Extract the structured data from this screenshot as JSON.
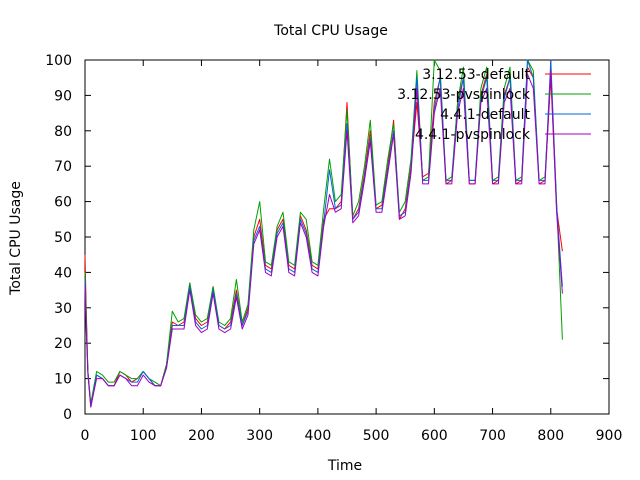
{
  "chart_data": {
    "type": "line",
    "title": "Total CPU Usage",
    "xlabel": "Time",
    "ylabel": "Total CPU Usage",
    "xlim": [
      0,
      900
    ],
    "ylim": [
      0,
      100
    ],
    "xticks": [
      0,
      100,
      200,
      300,
      400,
      500,
      600,
      700,
      800,
      900
    ],
    "yticks": [
      0,
      10,
      20,
      30,
      40,
      50,
      60,
      70,
      80,
      90,
      100
    ],
    "grid": false,
    "legend_position": "top-right",
    "series": [
      {
        "name": "3.12.53-default",
        "color": "#ff0000",
        "x": [
          0,
          2,
          5,
          10,
          20,
          30,
          40,
          50,
          60,
          70,
          80,
          90,
          100,
          110,
          120,
          130,
          140,
          150,
          160,
          170,
          180,
          190,
          200,
          210,
          220,
          230,
          240,
          250,
          260,
          270,
          280,
          290,
          300,
          310,
          320,
          330,
          340,
          350,
          360,
          370,
          380,
          390,
          400,
          410,
          420,
          430,
          440,
          450,
          460,
          470,
          480,
          490,
          500,
          510,
          520,
          530,
          540,
          550,
          560,
          570,
          580,
          590,
          600,
          610,
          620,
          630,
          640,
          650,
          660,
          670,
          680,
          690,
          700,
          710,
          720,
          730,
          740,
          750,
          760,
          770,
          780,
          790,
          800,
          810,
          820
        ],
        "y": [
          45,
          30,
          12,
          2,
          11,
          10,
          8,
          8,
          12,
          11,
          9,
          10,
          12,
          10,
          8,
          8,
          14,
          26,
          25,
          26,
          37,
          27,
          25,
          26,
          36,
          25,
          24,
          26,
          35,
          25,
          30,
          50,
          55,
          42,
          41,
          52,
          55,
          42,
          41,
          56,
          52,
          42,
          41,
          55,
          58,
          58,
          60,
          88,
          55,
          58,
          68,
          80,
          58,
          59,
          70,
          83,
          55,
          58,
          70,
          88,
          67,
          68,
          88,
          95,
          65,
          66,
          88,
          95,
          65,
          65,
          90,
          96,
          65,
          66,
          90,
          95,
          65,
          66,
          98,
          95,
          65,
          66,
          95,
          58,
          46
        ]
      },
      {
        "name": "3.12.53-pvspinlock",
        "color": "#00a000",
        "x": [
          0,
          2,
          5,
          10,
          20,
          30,
          40,
          50,
          60,
          70,
          80,
          90,
          100,
          110,
          120,
          130,
          140,
          150,
          160,
          170,
          180,
          190,
          200,
          210,
          220,
          230,
          240,
          250,
          260,
          270,
          280,
          290,
          300,
          310,
          320,
          330,
          340,
          350,
          360,
          370,
          380,
          390,
          400,
          410,
          420,
          430,
          440,
          450,
          460,
          470,
          480,
          490,
          500,
          510,
          520,
          530,
          540,
          550,
          560,
          570,
          580,
          590,
          600,
          610,
          620,
          630,
          640,
          650,
          660,
          670,
          680,
          690,
          700,
          710,
          720,
          730,
          740,
          750,
          760,
          770,
          780,
          790,
          800,
          810,
          820
        ],
        "y": [
          40,
          28,
          12,
          3,
          12,
          11,
          9,
          9,
          12,
          11,
          10,
          10,
          12,
          10,
          9,
          8,
          14,
          29,
          26,
          27,
          37,
          28,
          26,
          27,
          36,
          26,
          25,
          27,
          38,
          26,
          31,
          52,
          60,
          43,
          42,
          53,
          57,
          43,
          42,
          57,
          55,
          43,
          42,
          58,
          72,
          60,
          62,
          86,
          56,
          60,
          70,
          83,
          59,
          60,
          72,
          82,
          57,
          60,
          72,
          97,
          66,
          67,
          100,
          97,
          66,
          67,
          88,
          98,
          66,
          66,
          92,
          98,
          66,
          67,
          92,
          98,
          66,
          67,
          100,
          97,
          66,
          67,
          97,
          60,
          21
        ]
      },
      {
        "name": "4.4.1-default",
        "color": "#0066dd",
        "x": [
          0,
          2,
          5,
          10,
          20,
          30,
          40,
          50,
          60,
          70,
          80,
          90,
          100,
          110,
          120,
          130,
          140,
          150,
          160,
          170,
          180,
          190,
          200,
          210,
          220,
          230,
          240,
          250,
          260,
          270,
          280,
          290,
          300,
          310,
          320,
          330,
          340,
          350,
          360,
          370,
          380,
          390,
          400,
          410,
          420,
          430,
          440,
          450,
          460,
          470,
          480,
          490,
          500,
          510,
          520,
          530,
          540,
          550,
          560,
          570,
          580,
          590,
          600,
          610,
          620,
          630,
          640,
          650,
          660,
          670,
          680,
          690,
          700,
          710,
          720,
          730,
          740,
          750,
          760,
          770,
          780,
          790,
          800,
          810,
          820
        ],
        "y": [
          38,
          25,
          12,
          2,
          11,
          10,
          8,
          8,
          11,
          10,
          9,
          9,
          12,
          10,
          8,
          8,
          13,
          25,
          25,
          25,
          36,
          26,
          24,
          25,
          35,
          25,
          24,
          25,
          34,
          25,
          29,
          49,
          53,
          41,
          40,
          51,
          54,
          41,
          40,
          55,
          51,
          41,
          40,
          54,
          69,
          58,
          59,
          82,
          55,
          57,
          67,
          78,
          58,
          58,
          69,
          80,
          56,
          57,
          69,
          95,
          66,
          66,
          86,
          95,
          66,
          66,
          86,
          95,
          66,
          66,
          89,
          95,
          66,
          66,
          89,
          95,
          66,
          66,
          100,
          95,
          66,
          66,
          100,
          59,
          36
        ]
      },
      {
        "name": "4.4.1-pvspinlock",
        "color": "#a000c0",
        "x": [
          0,
          2,
          5,
          10,
          20,
          30,
          40,
          50,
          60,
          70,
          80,
          90,
          100,
          110,
          120,
          130,
          140,
          150,
          160,
          170,
          180,
          190,
          200,
          210,
          220,
          230,
          240,
          250,
          260,
          270,
          280,
          290,
          300,
          310,
          320,
          330,
          340,
          350,
          360,
          370,
          380,
          390,
          400,
          410,
          420,
          430,
          440,
          450,
          460,
          470,
          480,
          490,
          500,
          510,
          520,
          530,
          540,
          550,
          560,
          570,
          580,
          590,
          600,
          610,
          620,
          630,
          640,
          650,
          660,
          670,
          680,
          690,
          700,
          710,
          720,
          730,
          740,
          750,
          760,
          770,
          780,
          790,
          800,
          810,
          820
        ],
        "y": [
          36,
          24,
          11,
          2,
          10,
          10,
          8,
          8,
          11,
          10,
          8,
          8,
          11,
          9,
          8,
          8,
          13,
          24,
          24,
          24,
          35,
          25,
          23,
          24,
          34,
          24,
          23,
          24,
          33,
          24,
          28,
          48,
          52,
          40,
          39,
          50,
          53,
          40,
          39,
          54,
          50,
          40,
          39,
          53,
          62,
          57,
          58,
          80,
          54,
          56,
          66,
          77,
          57,
          57,
          68,
          79,
          55,
          56,
          68,
          92,
          65,
          65,
          85,
          92,
          65,
          65,
          85,
          92,
          65,
          65,
          88,
          92,
          65,
          65,
          88,
          92,
          65,
          65,
          96,
          92,
          65,
          65,
          97,
          57,
          34
        ]
      }
    ]
  }
}
